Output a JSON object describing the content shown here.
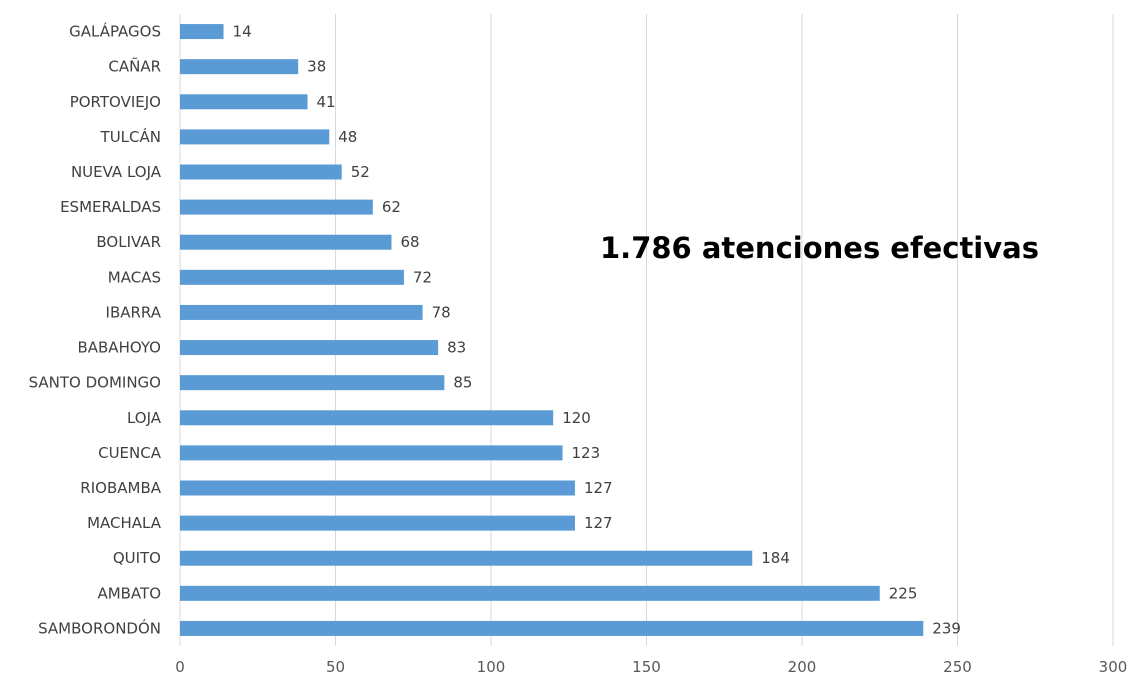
{
  "chart_data": {
    "type": "bar",
    "orientation": "horizontal",
    "categories": [
      "GALÁPAGOS",
      "CAÑAR",
      "PORTOVIEJO",
      "TULCÁN",
      "NUEVA LOJA",
      "ESMERALDAS",
      "BOLIVAR",
      "MACAS",
      "IBARRA",
      "BABAHOYO",
      "SANTO DOMINGO",
      "LOJA",
      "CUENCA",
      "RIOBAMBA",
      "MACHALA",
      "QUITO",
      "AMBATO",
      "SAMBORONDÓN"
    ],
    "values": [
      14,
      38,
      41,
      48,
      52,
      62,
      68,
      72,
      78,
      83,
      85,
      120,
      123,
      127,
      127,
      184,
      225,
      239
    ],
    "xlim": [
      0,
      300
    ],
    "xticks": [
      0,
      50,
      100,
      150,
      200,
      250,
      300
    ],
    "grid": "vertical",
    "bar_color": "#5b9bd5",
    "annotation": "1.786 atenciones efectivas",
    "title": "",
    "xlabel": "",
    "ylabel": ""
  }
}
